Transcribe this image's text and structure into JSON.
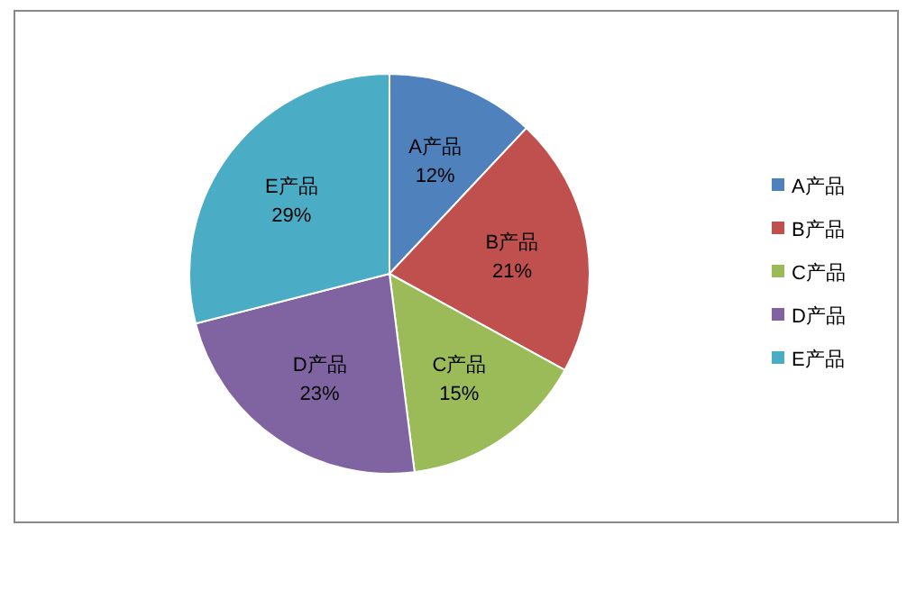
{
  "chart_data": {
    "type": "pie",
    "categories": [
      "A产品",
      "B产品",
      "C产品",
      "D产品",
      "E产品"
    ],
    "values": [
      12,
      21,
      15,
      23,
      29
    ],
    "value_labels": [
      "12%",
      "21%",
      "15%",
      "23%",
      "29%"
    ],
    "colors": [
      "#4f81bd",
      "#c0504d",
      "#9bbb59",
      "#8064a2",
      "#4bacc6"
    ],
    "legend": "right"
  }
}
